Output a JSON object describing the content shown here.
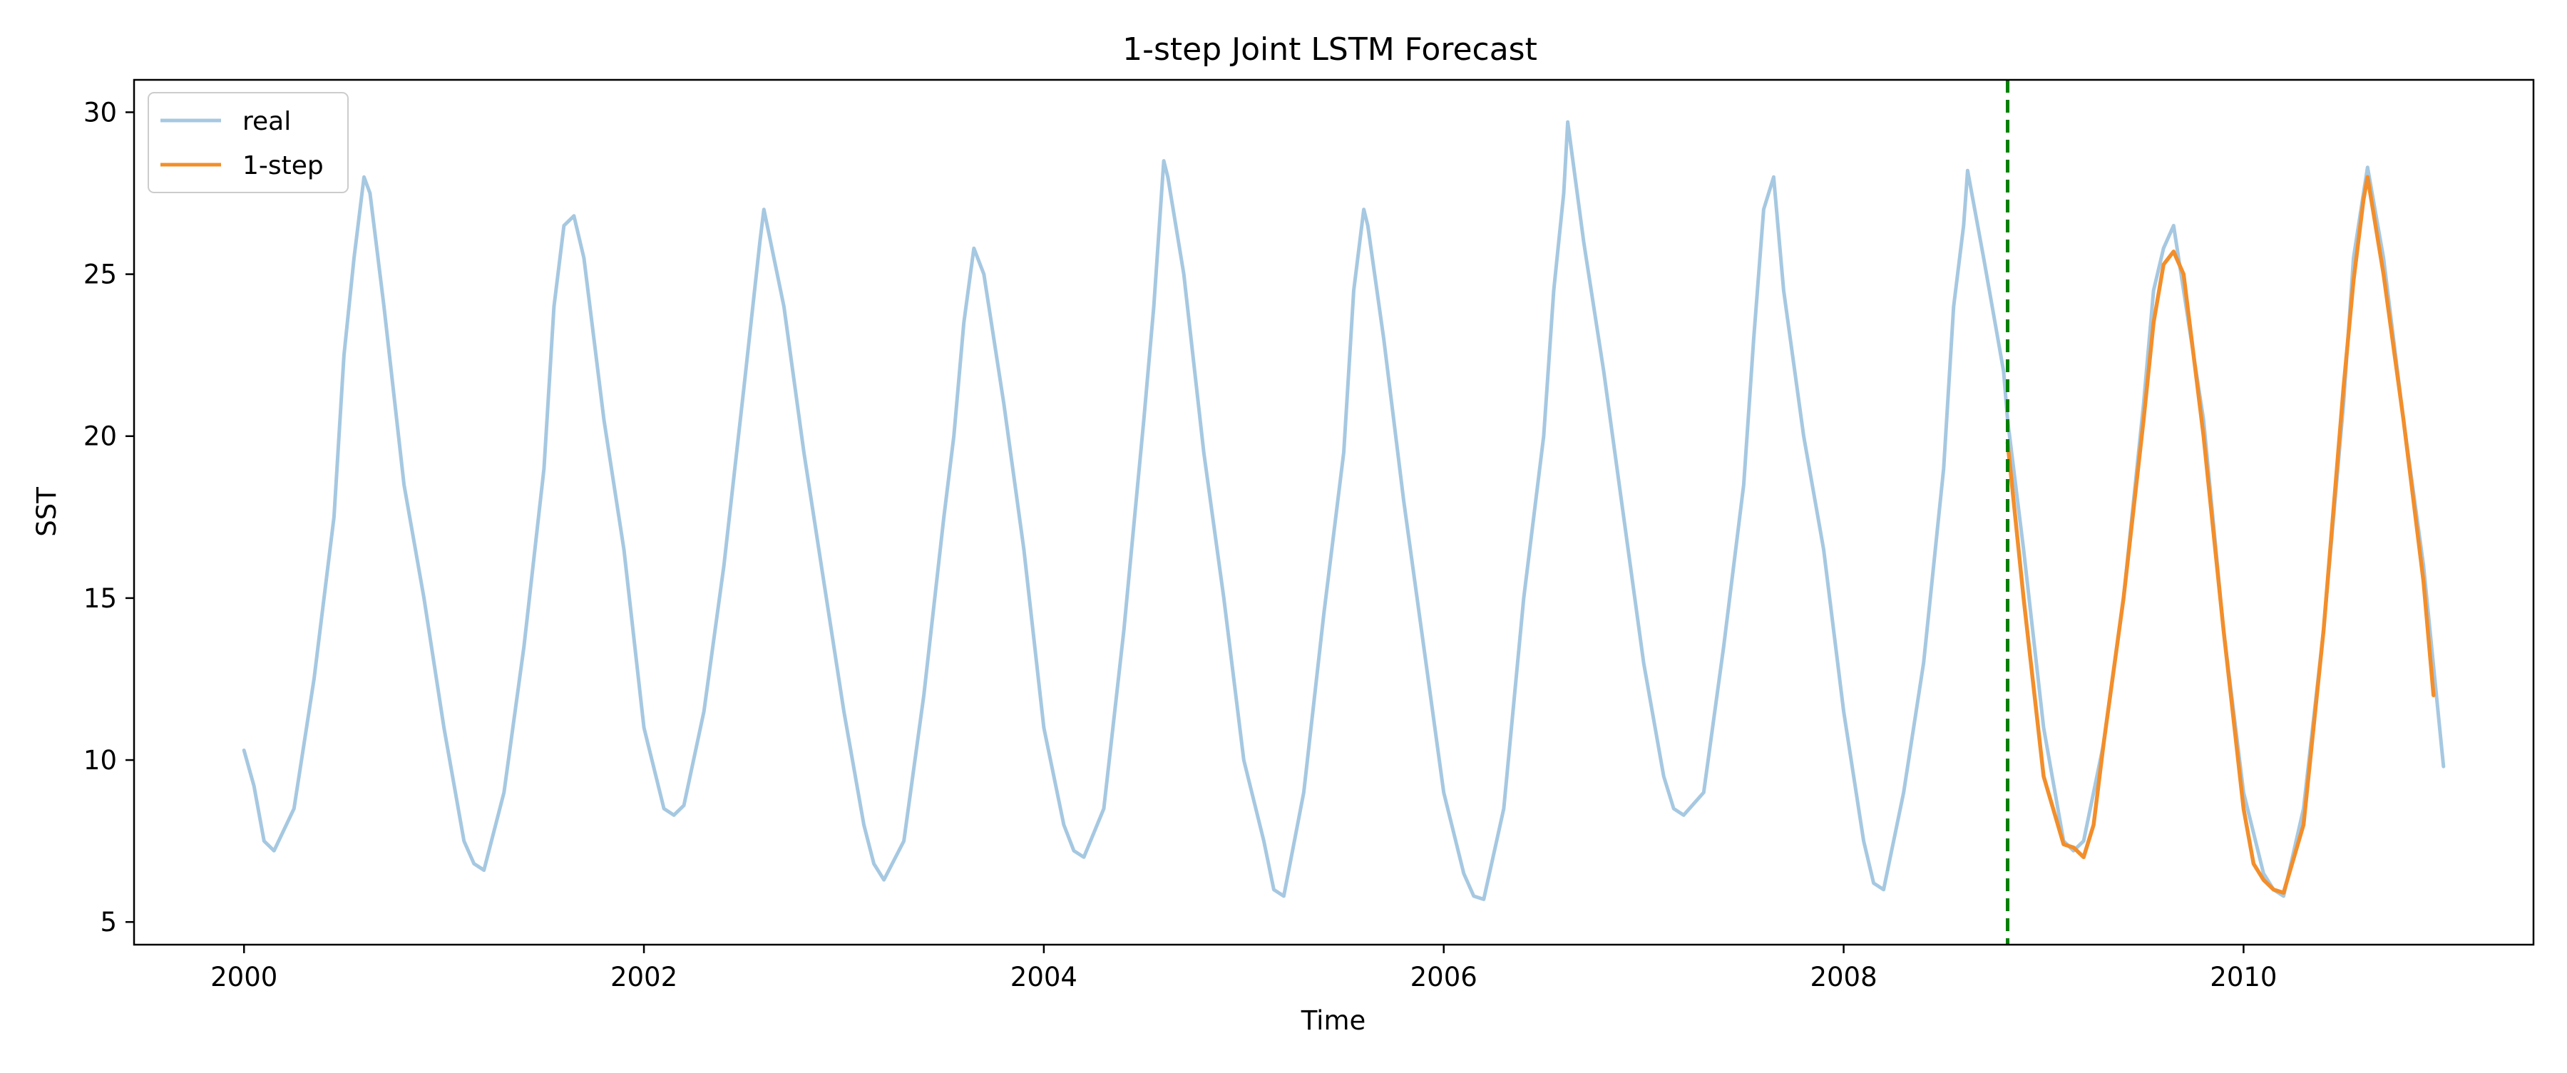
{
  "chart_data": {
    "type": "line",
    "title": "1-step Joint LSTM Forecast",
    "xlabel": "Time",
    "ylabel": "SST",
    "xlim": [
      1999.45,
      2011.45
    ],
    "ylim": [
      4.3,
      31.0
    ],
    "x_ticks": [
      2000,
      2002,
      2004,
      2006,
      2008,
      2010
    ],
    "x_tick_labels": [
      "2000",
      "2002",
      "2004",
      "2006",
      "2008",
      "2010"
    ],
    "y_ticks": [
      5,
      10,
      15,
      20,
      25,
      30
    ],
    "y_tick_labels": [
      "5",
      "10",
      "15",
      "20",
      "25",
      "30"
    ],
    "grid": false,
    "legend_position": "top-left",
    "forecast_start": 2008.82,
    "series": [
      {
        "name": "real",
        "color": "#a6c8e1",
        "x": [
          2000.0,
          2000.05,
          2000.1,
          2000.15,
          2000.25,
          2000.35,
          2000.45,
          2000.5,
          2000.55,
          2000.6,
          2000.63,
          2000.7,
          2000.8,
          2000.9,
          2001.0,
          2001.1,
          2001.15,
          2001.2,
          2001.3,
          2001.4,
          2001.5,
          2001.55,
          2001.6,
          2001.65,
          2001.7,
          2001.8,
          2001.9,
          2002.0,
          2002.1,
          2002.15,
          2002.2,
          2002.3,
          2002.4,
          2002.5,
          2002.58,
          2002.6,
          2002.7,
          2002.8,
          2002.9,
          2003.0,
          2003.1,
          2003.15,
          2003.2,
          2003.3,
          2003.4,
          2003.5,
          2003.55,
          2003.6,
          2003.65,
          2003.7,
          2003.8,
          2003.9,
          2004.0,
          2004.1,
          2004.15,
          2004.2,
          2004.3,
          2004.4,
          2004.5,
          2004.55,
          2004.6,
          2004.62,
          2004.7,
          2004.8,
          2004.9,
          2005.0,
          2005.1,
          2005.15,
          2005.2,
          2005.3,
          2005.4,
          2005.5,
          2005.55,
          2005.6,
          2005.62,
          2005.7,
          2005.8,
          2005.9,
          2006.0,
          2006.1,
          2006.15,
          2006.2,
          2006.3,
          2006.4,
          2006.5,
          2006.55,
          2006.6,
          2006.62,
          2006.7,
          2006.8,
          2006.9,
          2007.0,
          2007.1,
          2007.15,
          2007.2,
          2007.3,
          2007.4,
          2007.5,
          2007.55,
          2007.6,
          2007.65,
          2007.7,
          2007.8,
          2007.9,
          2008.0,
          2008.1,
          2008.15,
          2008.2,
          2008.3,
          2008.4,
          2008.5,
          2008.55,
          2008.6,
          2008.62,
          2008.7,
          2008.8,
          2008.82,
          2008.9,
          2009.0,
          2009.1,
          2009.15,
          2009.2,
          2009.3,
          2009.4,
          2009.5,
          2009.55,
          2009.6,
          2009.65,
          2009.7,
          2009.8,
          2009.9,
          2010.0,
          2010.1,
          2010.15,
          2010.2,
          2010.3,
          2010.4,
          2010.5,
          2010.55,
          2010.6,
          2010.62,
          2010.7,
          2010.8,
          2010.9,
          2011.0
        ],
        "y": [
          10.3,
          9.2,
          7.5,
          7.2,
          8.5,
          12.5,
          17.5,
          22.5,
          25.5,
          28.0,
          27.5,
          24.0,
          18.5,
          15.0,
          11.0,
          7.5,
          6.8,
          6.6,
          9.0,
          13.5,
          19.0,
          24.0,
          26.5,
          26.8,
          25.5,
          20.5,
          16.5,
          11.0,
          8.5,
          8.3,
          8.6,
          11.5,
          16.0,
          21.5,
          26.0,
          27.0,
          24.0,
          19.5,
          15.5,
          11.5,
          8.0,
          6.8,
          6.3,
          7.5,
          12.0,
          17.5,
          20.0,
          23.5,
          25.8,
          25.0,
          21.0,
          16.5,
          11.0,
          8.0,
          7.2,
          7.0,
          8.5,
          14.0,
          20.5,
          24.0,
          28.5,
          28.0,
          25.0,
          19.5,
          15.0,
          10.0,
          7.5,
          6.0,
          5.8,
          9.0,
          14.5,
          19.5,
          24.5,
          27.0,
          26.5,
          23.0,
          18.0,
          13.5,
          9.0,
          6.5,
          5.8,
          5.7,
          8.5,
          15.0,
          20.0,
          24.5,
          27.5,
          29.7,
          26.0,
          22.0,
          17.5,
          13.0,
          9.5,
          8.5,
          8.3,
          9.0,
          13.5,
          18.5,
          23.0,
          27.0,
          28.0,
          24.5,
          20.0,
          16.5,
          11.5,
          7.5,
          6.2,
          6.0,
          9.0,
          13.0,
          19.0,
          24.0,
          26.5,
          28.2,
          25.5,
          22.0,
          20.5,
          16.5,
          11.0,
          7.5,
          7.2,
          7.5,
          10.5,
          15.0,
          21.0,
          24.5,
          25.8,
          26.5,
          24.5,
          20.5,
          14.0,
          9.0,
          6.5,
          6.0,
          5.8,
          8.5,
          14.0,
          21.0,
          25.5,
          27.5,
          28.3,
          25.5,
          20.5,
          16.0,
          9.8
        ]
      },
      {
        "name": "1-step",
        "color": "#f28e2b",
        "x": [
          2008.82,
          2008.9,
          2009.0,
          2009.1,
          2009.15,
          2009.2,
          2009.25,
          2009.3,
          2009.4,
          2009.5,
          2009.55,
          2009.6,
          2009.65,
          2009.7,
          2009.8,
          2009.9,
          2010.0,
          2010.05,
          2010.1,
          2010.15,
          2010.2,
          2010.3,
          2010.4,
          2010.5,
          2010.55,
          2010.6,
          2010.62,
          2010.7,
          2010.8,
          2010.9,
          2010.95
        ],
        "y": [
          19.8,
          15.0,
          9.5,
          7.4,
          7.3,
          7.0,
          8.0,
          10.5,
          15.0,
          20.5,
          23.5,
          25.3,
          25.7,
          25.0,
          20.0,
          14.0,
          8.5,
          6.8,
          6.3,
          6.0,
          5.9,
          8.0,
          14.0,
          21.5,
          24.8,
          27.3,
          28.0,
          25.0,
          20.5,
          15.5,
          12.0
        ]
      }
    ]
  }
}
